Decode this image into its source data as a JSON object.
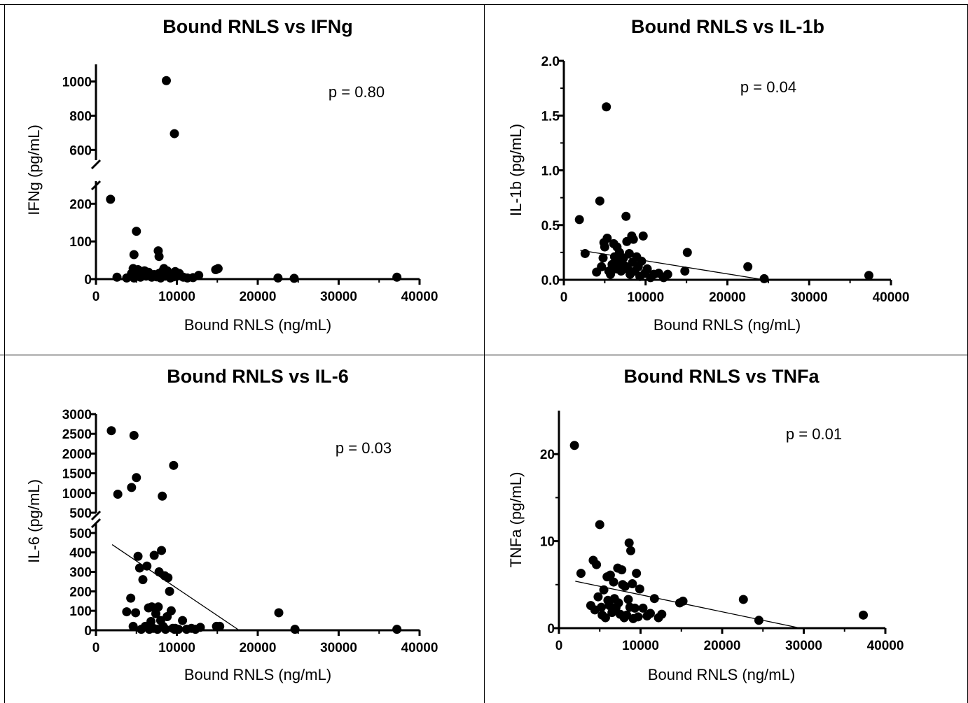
{
  "chart_data": [
    {
      "type": "scatter",
      "title": "Bound RNLS vs IFNg",
      "xlabel": "Bound RNLS (ng/mL)",
      "ylabel": "IFNg (pg/mL)",
      "annotation": "p = 0.80",
      "xlim": [
        0,
        40000
      ],
      "xticks": [
        0,
        10000,
        20000,
        30000,
        40000
      ],
      "ylim": [
        0,
        1100
      ],
      "yaxis_break": [
        260,
        540
      ],
      "yticks_lower": [
        0,
        100,
        200
      ],
      "yticks_upper": [
        600,
        800,
        1000
      ],
      "trendline": null,
      "x": [
        1800,
        2600,
        3800,
        4400,
        4600,
        4700,
        5000,
        5200,
        5500,
        5700,
        6000,
        6200,
        6500,
        6900,
        7200,
        7500,
        7800,
        8000,
        8200,
        8400,
        8600,
        8800,
        9000,
        9200,
        9400,
        9600,
        9800,
        10000,
        10300,
        10800,
        11300,
        12000,
        12700,
        14800,
        15100,
        22500,
        24500,
        37200,
        8700,
        9700,
        7700,
        7800,
        5000,
        4700
      ],
      "y": [
        212,
        5,
        3,
        15,
        28,
        3,
        10,
        25,
        5,
        15,
        22,
        8,
        18,
        5,
        12,
        6,
        15,
        3,
        20,
        28,
        8,
        22,
        16,
        3,
        12,
        6,
        20,
        8,
        15,
        5,
        3,
        4,
        10,
        25,
        28,
        3,
        2,
        5,
        1005,
        695,
        75,
        60,
        127,
        65
      ]
    },
    {
      "type": "scatter",
      "title": "Bound RNLS vs IL-1b",
      "xlabel": "Bound RNLS (ng/mL)",
      "ylabel": "IL-1b (pg/mL)",
      "annotation": "p = 0.04",
      "xlim": [
        0,
        40000
      ],
      "xticks": [
        0,
        10000,
        20000,
        30000,
        40000
      ],
      "ylim": [
        0,
        2.0
      ],
      "yticks": [
        0.0,
        0.5,
        1.0,
        1.5,
        2.0
      ],
      "trendline": {
        "x": [
          2000,
          24500
        ],
        "y": [
          0.27,
          0.0
        ]
      },
      "x": [
        1900,
        2600,
        4000,
        4400,
        4600,
        4800,
        4900,
        5000,
        5200,
        5300,
        5500,
        5700,
        5900,
        6100,
        6200,
        6400,
        6500,
        6700,
        6800,
        7000,
        7100,
        7300,
        7400,
        7600,
        7700,
        7800,
        8000,
        8100,
        8300,
        8400,
        8500,
        8700,
        8900,
        9100,
        9300,
        9500,
        9700,
        9900,
        10200,
        10600,
        11000,
        11600,
        12200,
        12700,
        14800,
        15100,
        22500,
        24500,
        37300
      ],
      "y": [
        0.55,
        0.24,
        0.07,
        0.72,
        0.12,
        0.2,
        0.34,
        0.3,
        1.58,
        0.38,
        0.08,
        0.05,
        0.14,
        0.33,
        0.21,
        0.1,
        0.3,
        0.17,
        0.25,
        0.08,
        0.11,
        0.2,
        0.13,
        0.58,
        0.35,
        0.1,
        0.24,
        0.05,
        0.4,
        0.16,
        0.37,
        0.08,
        0.21,
        0.12,
        0.03,
        0.17,
        0.4,
        0.06,
        0.1,
        0.02,
        0.05,
        0.06,
        0.02,
        0.05,
        0.08,
        0.25,
        0.12,
        0.01,
        0.04
      ]
    },
    {
      "type": "scatter",
      "title": "Bound RNLS vs IL-6",
      "xlabel": "Bound RNLS (ng/mL)",
      "ylabel": "IL-6 (pg/mL)",
      "annotation": "p = 0.03",
      "xlim": [
        0,
        40000
      ],
      "xticks": [
        0,
        10000,
        20000,
        30000,
        40000
      ],
      "ylim": [
        0,
        3000
      ],
      "yaxis_break": [
        540,
        540
      ],
      "yticks_lower": [
        0,
        100,
        200,
        300,
        400,
        500
      ],
      "yticks_upper": [
        500,
        1000,
        1500,
        2000,
        2500,
        3000
      ],
      "trendline": {
        "x": [
          2000,
          17700
        ],
        "y": [
          440,
          0
        ]
      },
      "x": [
        1900,
        2700,
        4400,
        4700,
        5000,
        8200,
        9600,
        3800,
        4300,
        4600,
        4900,
        5200,
        5400,
        5600,
        5800,
        6100,
        6300,
        6500,
        6600,
        6800,
        6900,
        7100,
        7200,
        7400,
        7600,
        7700,
        7800,
        8000,
        8100,
        8300,
        8500,
        8600,
        8800,
        8900,
        9100,
        9300,
        9500,
        9700,
        9800,
        10200,
        10700,
        11200,
        11800,
        12300,
        12900,
        14900,
        15300,
        22600,
        24600,
        37200
      ],
      "y": [
        2580,
        970,
        1140,
        2460,
        1390,
        920,
        1700,
        95,
        165,
        20,
        90,
        380,
        320,
        5,
        260,
        20,
        330,
        115,
        5,
        45,
        120,
        10,
        385,
        85,
        5,
        120,
        300,
        50,
        410,
        20,
        280,
        5,
        70,
        270,
        200,
        100,
        10,
        5,
        10,
        5,
        50,
        5,
        10,
        5,
        15,
        20,
        20,
        90,
        5,
        5
      ]
    },
    {
      "type": "scatter",
      "title": "Bound RNLS vs TNFa",
      "xlabel": "Bound RNLS (ng/mL)",
      "ylabel": "TNFa (pg/mL)",
      "annotation": "p = 0.01",
      "xlim": [
        0,
        40000
      ],
      "xticks": [
        0,
        10000,
        20000,
        30000,
        40000
      ],
      "ylim": [
        0,
        25
      ],
      "yticks": [
        0,
        10,
        20
      ],
      "trendline": {
        "x": [
          2000,
          29600
        ],
        "y": [
          5.4,
          0.0
        ]
      },
      "x": [
        1900,
        2700,
        3900,
        4200,
        4400,
        4600,
        4800,
        5000,
        5200,
        5300,
        5500,
        5700,
        5900,
        6000,
        6200,
        6300,
        6500,
        6700,
        6800,
        7000,
        7200,
        7300,
        7500,
        7700,
        7800,
        8000,
        8100,
        8300,
        8500,
        8600,
        8700,
        8800,
        9000,
        9100,
        9300,
        9500,
        9700,
        9900,
        10300,
        10800,
        11200,
        11700,
        12200,
        12600,
        14800,
        15200,
        22600,
        24500,
        37300
      ],
      "y": [
        21.0,
        6.3,
        2.6,
        7.8,
        2.1,
        7.3,
        3.6,
        11.9,
        2.4,
        1.5,
        4.4,
        1.2,
        5.9,
        3.2,
        2.6,
        6.1,
        1.8,
        5.3,
        3.4,
        2.4,
        6.9,
        2.9,
        1.6,
        6.7,
        5.0,
        1.2,
        4.8,
        1.5,
        3.3,
        9.8,
        2.4,
        8.9,
        5.1,
        1.1,
        2.3,
        6.3,
        1.3,
        4.5,
        2.3,
        1.4,
        1.7,
        3.4,
        1.2,
        1.6,
        2.9,
        3.1,
        3.3,
        0.9,
        1.5
      ]
    }
  ]
}
